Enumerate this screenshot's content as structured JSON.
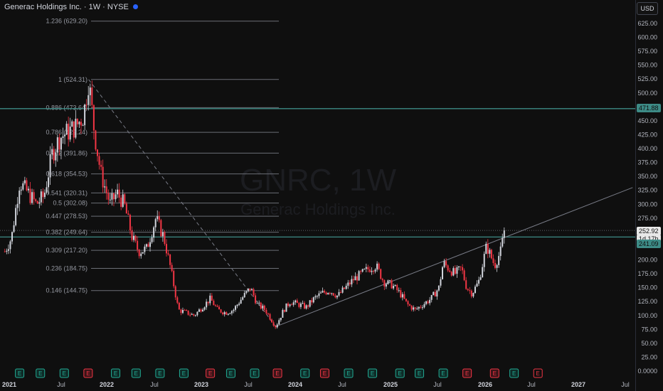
{
  "header": {
    "symbol_title": "Generac Holdings Inc. · 1W · NYSE",
    "currency_button": "USD"
  },
  "watermark": {
    "ticker": "GNRC, 1W",
    "company": "Generac Holdings Inc."
  },
  "price_axis": {
    "ticks": [
      0,
      25,
      50,
      75,
      100,
      125,
      150,
      175,
      200,
      225,
      250,
      275,
      300,
      325,
      350,
      375,
      400,
      425,
      450,
      475,
      500,
      525,
      550,
      575,
      600,
      625
    ],
    "tick_labels": [
      "0.0000",
      "25.00",
      "50.00",
      "75.00",
      "100.00",
      "125.00",
      "150.00",
      "175.00",
      "200.00",
      "225.00",
      "250.00",
      "275.00",
      "300.00",
      "325.00",
      "350.00",
      "375.00",
      "400.00",
      "425.00",
      "450.00",
      "475.00",
      "500.00",
      "525.00",
      "550.00",
      "575.00",
      "600.00",
      "625.00"
    ]
  },
  "price_tags": {
    "resistance": "471.88",
    "current": "252.92",
    "timer": "1d 17h",
    "support": "241.09"
  },
  "time_axis": {
    "labels": [
      "2021",
      "Jul",
      "2022",
      "Jul",
      "2023",
      "Jul",
      "2024",
      "Jul",
      "2025",
      "Jul",
      "2026",
      "Jul",
      "2027",
      "Jul"
    ]
  },
  "colors": {
    "up": "#d1d4dc",
    "down": "#f23645",
    "teal": "#3d8b86",
    "fib": "#6b6e76",
    "bg": "#0f0f0f"
  },
  "chart_data": {
    "type": "candlestick",
    "title": "Generac Holdings Inc. · 1W · NYSE",
    "x_range": [
      "2020-11",
      "2027-09"
    ],
    "ylim": [
      0,
      640
    ],
    "price_series": [
      {
        "date": "2020-12-15",
        "close": 215
      },
      {
        "date": "2021-01-10",
        "close": 240
      },
      {
        "date": "2021-02-10",
        "close": 340
      },
      {
        "date": "2021-03-15",
        "close": 320
      },
      {
        "date": "2021-04-15",
        "close": 300
      },
      {
        "date": "2021-05-15",
        "close": 315
      },
      {
        "date": "2021-06-15",
        "close": 390
      },
      {
        "date": "2021-07-15",
        "close": 420
      },
      {
        "date": "2021-08-15",
        "close": 430
      },
      {
        "date": "2021-09-15",
        "close": 440
      },
      {
        "date": "2021-10-15",
        "close": 460
      },
      {
        "date": "2021-11-03",
        "close": 524
      },
      {
        "date": "2021-11-25",
        "close": 430
      },
      {
        "date": "2021-12-20",
        "close": 355
      },
      {
        "date": "2022-01-25",
        "close": 300
      },
      {
        "date": "2022-02-20",
        "close": 320
      },
      {
        "date": "2022-03-20",
        "close": 300
      },
      {
        "date": "2022-04-20",
        "close": 240
      },
      {
        "date": "2022-05-15",
        "close": 215
      },
      {
        "date": "2022-06-15",
        "close": 220
      },
      {
        "date": "2022-07-20",
        "close": 275
      },
      {
        "date": "2022-08-20",
        "close": 240
      },
      {
        "date": "2022-09-15",
        "close": 185
      },
      {
        "date": "2022-10-15",
        "close": 110
      },
      {
        "date": "2022-11-15",
        "close": 105
      },
      {
        "date": "2022-12-15",
        "close": 100
      },
      {
        "date": "2023-01-15",
        "close": 115
      },
      {
        "date": "2023-02-15",
        "close": 130
      },
      {
        "date": "2023-03-15",
        "close": 110
      },
      {
        "date": "2023-04-15",
        "close": 105
      },
      {
        "date": "2023-05-15",
        "close": 110
      },
      {
        "date": "2023-06-15",
        "close": 130
      },
      {
        "date": "2023-07-20",
        "close": 150
      },
      {
        "date": "2023-08-15",
        "close": 120
      },
      {
        "date": "2023-09-15",
        "close": 110
      },
      {
        "date": "2023-10-25",
        "close": 80
      },
      {
        "date": "2023-11-25",
        "close": 110
      },
      {
        "date": "2023-12-20",
        "close": 125
      },
      {
        "date": "2024-01-20",
        "close": 120
      },
      {
        "date": "2024-02-20",
        "close": 115
      },
      {
        "date": "2024-03-20",
        "close": 130
      },
      {
        "date": "2024-04-20",
        "close": 140
      },
      {
        "date": "2024-05-20",
        "close": 145
      },
      {
        "date": "2024-06-20",
        "close": 135
      },
      {
        "date": "2024-07-20",
        "close": 150
      },
      {
        "date": "2024-08-20",
        "close": 165
      },
      {
        "date": "2024-09-20",
        "close": 175
      },
      {
        "date": "2024-10-20",
        "close": 185
      },
      {
        "date": "2024-11-15",
        "close": 190
      },
      {
        "date": "2024-12-15",
        "close": 160
      },
      {
        "date": "2025-01-15",
        "close": 155
      },
      {
        "date": "2025-02-15",
        "close": 140
      },
      {
        "date": "2025-03-15",
        "close": 120
      },
      {
        "date": "2025-04-15",
        "close": 110
      },
      {
        "date": "2025-05-15",
        "close": 120
      },
      {
        "date": "2025-06-15",
        "close": 130
      },
      {
        "date": "2025-07-15",
        "close": 150
      },
      {
        "date": "2025-08-01",
        "close": 195
      },
      {
        "date": "2025-08-20",
        "close": 185
      },
      {
        "date": "2025-09-15",
        "close": 175
      },
      {
        "date": "2025-10-10",
        "close": 185
      },
      {
        "date": "2025-10-30",
        "close": 150
      },
      {
        "date": "2025-11-20",
        "close": 140
      },
      {
        "date": "2025-12-15",
        "close": 160
      },
      {
        "date": "2026-01-15",
        "close": 225
      },
      {
        "date": "2026-02-15",
        "close": 190
      },
      {
        "date": "2026-03-10",
        "close": 215
      },
      {
        "date": "2026-03-25",
        "close": 252.92
      }
    ],
    "fibonacci": [
      {
        "label": "1.236 (629.20)",
        "value": 629.2
      },
      {
        "label": "1 (524.31)",
        "value": 524.31
      },
      {
        "label": "0.886 (473.64)",
        "value": 473.64
      },
      {
        "label": "0.786 (429.24)",
        "value": 429.24
      },
      {
        "label": "0.702 (391.86)",
        "value": 391.86
      },
      {
        "label": "0.618 (354.53)",
        "value": 354.53
      },
      {
        "label": "0.541 (320.31)",
        "value": 320.31
      },
      {
        "label": "0.5 (302.08)",
        "value": 302.08
      },
      {
        "label": "0.447 (278.53)",
        "value": 278.53
      },
      {
        "label": "0.382 (249.64)",
        "value": 249.64
      },
      {
        "label": "0.309 (217.20)",
        "value": 217.2
      },
      {
        "label": "0.236 (184.75)",
        "value": 184.75
      },
      {
        "label": "0.146 (144.75)",
        "value": 144.75
      }
    ],
    "fib_date_range": [
      "2021-11-03",
      "2023-10-25"
    ],
    "horizontal_lines": [
      {
        "value": 471.88
      },
      {
        "value": 241.09
      }
    ],
    "trendlines": [
      {
        "style": "dashed",
        "from": {
          "date": "2021-11-03",
          "value": 524.31
        },
        "to": {
          "date": "2023-10-25",
          "value": 80
        }
      },
      {
        "style": "solid",
        "from": {
          "date": "2023-10-25",
          "value": 80
        },
        "to": {
          "date": "2027-08-01",
          "value": 330
        }
      }
    ],
    "earnings_events": [
      {
        "date": "2021-02-10",
        "kind": "E",
        "beat": true
      },
      {
        "date": "2021-05-01",
        "kind": "E",
        "beat": true
      },
      {
        "date": "2021-08-01",
        "kind": "E",
        "beat": true
      },
      {
        "date": "2021-11-01",
        "kind": "E",
        "beat": false
      },
      {
        "date": "2022-02-15",
        "kind": "E",
        "beat": true
      },
      {
        "date": "2022-05-05",
        "kind": "E",
        "beat": true
      },
      {
        "date": "2022-08-05",
        "kind": "E",
        "beat": true
      },
      {
        "date": "2022-11-05",
        "kind": "E",
        "beat": true
      },
      {
        "date": "2023-02-15",
        "kind": "E",
        "beat": false
      },
      {
        "date": "2023-05-05",
        "kind": "E",
        "beat": true
      },
      {
        "date": "2023-08-05",
        "kind": "E",
        "beat": true
      },
      {
        "date": "2023-11-01",
        "kind": "E",
        "beat": false
      },
      {
        "date": "2024-02-15",
        "kind": "E",
        "beat": true
      },
      {
        "date": "2024-05-01",
        "kind": "E",
        "beat": false
      },
      {
        "date": "2024-08-01",
        "kind": "E",
        "beat": true
      },
      {
        "date": "2024-11-01",
        "kind": "E",
        "beat": true
      },
      {
        "date": "2025-02-15",
        "kind": "E",
        "beat": true
      },
      {
        "date": "2025-05-01",
        "kind": "E",
        "beat": true
      },
      {
        "date": "2025-08-01",
        "kind": "E",
        "beat": true
      },
      {
        "date": "2025-11-01",
        "kind": "E",
        "beat": false
      },
      {
        "date": "2026-02-15",
        "kind": "E",
        "beat": false
      },
      {
        "date": "2026-05-01",
        "kind": "E",
        "beat": true
      },
      {
        "date": "2026-08-01",
        "kind": "E",
        "beat": false
      }
    ]
  }
}
